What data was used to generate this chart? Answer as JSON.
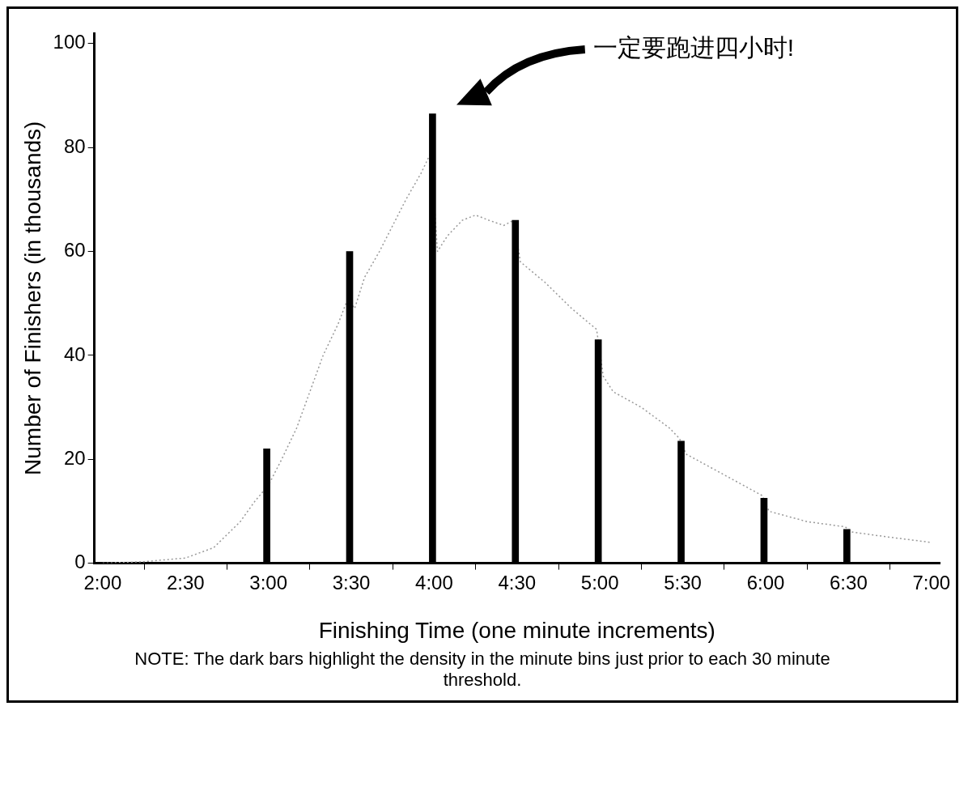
{
  "chart_data": {
    "type": "bar",
    "xlabel": "Finishing Time (one minute increments)",
    "ylabel": "Number of Finishers (in thousands)",
    "xlim": [
      1.95,
      7.05
    ],
    "xticks": [
      {
        "value": 2,
        "label": "2:00"
      },
      {
        "value": 2.5,
        "label": "2:30"
      },
      {
        "value": 3,
        "label": "3:00"
      },
      {
        "value": 3.5,
        "label": "3:30"
      },
      {
        "value": 4,
        "label": "4:00"
      },
      {
        "value": 4.5,
        "label": "4:30"
      },
      {
        "value": 5,
        "label": "5:00"
      },
      {
        "value": 5.5,
        "label": "5:30"
      },
      {
        "value": 6,
        "label": "6:00"
      },
      {
        "value": 6.5,
        "label": "6:30"
      },
      {
        "value": 7,
        "label": "7:00"
      }
    ],
    "ylim": [
      0,
      102
    ],
    "yticks": [
      0,
      20,
      40,
      60,
      80,
      100
    ],
    "grid": false,
    "legend": false,
    "series": [
      {
        "type": "line",
        "line_style": "dotted",
        "color": "#999999",
        "x": [
          2,
          2.25,
          2.5,
          2.67,
          2.83,
          2.92,
          3,
          3.08,
          3.17,
          3.25,
          3.33,
          3.42,
          3.48,
          3.52,
          3.58,
          3.67,
          3.75,
          3.83,
          3.92,
          3.98,
          4.02,
          4.08,
          4.17,
          4.25,
          4.33,
          4.42,
          4.48,
          4.52,
          4.67,
          4.83,
          4.98,
          5.02,
          5.08,
          5.25,
          5.42,
          5.48,
          5.52,
          5.75,
          5.98,
          6.02,
          6.25,
          6.48,
          6.52,
          6.75,
          7
        ],
        "values": [
          0,
          0.3,
          1,
          3,
          8,
          12,
          15,
          20,
          26,
          33,
          40,
          46,
          51,
          49,
          55,
          60,
          65,
          70,
          75,
          79,
          60,
          63,
          66,
          67,
          66,
          65,
          66,
          58,
          54,
          49,
          45,
          36,
          33,
          30,
          26,
          24,
          21,
          17,
          13,
          10,
          8,
          7,
          6,
          5,
          4
        ]
      },
      {
        "color": "#000000",
        "x": [
          2.99,
          3.49,
          3.99,
          4.49,
          4.99,
          5.49,
          5.99,
          6.49
        ],
        "values": [
          22,
          60,
          86.5,
          66,
          43,
          23.5,
          12.5,
          6.5
        ]
      }
    ],
    "annotations": [
      "一定要跑进四小时!",
      "NOTE: The dark bars highlight the density in the minute bins just prior to each 30 minute threshold."
    ]
  }
}
